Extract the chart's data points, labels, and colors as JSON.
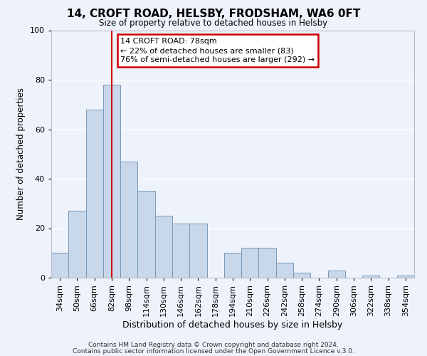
{
  "title": "14, CROFT ROAD, HELSBY, FRODSHAM, WA6 0FT",
  "subtitle": "Size of property relative to detached houses in Helsby",
  "xlabel": "Distribution of detached houses by size in Helsby",
  "ylabel": "Number of detached properties",
  "bar_color": "#c8d8ea",
  "bar_edge_color": "#7799bb",
  "background_color": "#eef2fb",
  "grid_color": "#ffffff",
  "bin_labels": [
    "34sqm",
    "50sqm",
    "66sqm",
    "82sqm",
    "98sqm",
    "114sqm",
    "130sqm",
    "146sqm",
    "162sqm",
    "178sqm",
    "194sqm",
    "210sqm",
    "226sqm",
    "242sqm",
    "258sqm",
    "274sqm",
    "290sqm",
    "306sqm",
    "322sqm",
    "338sqm",
    "354sqm"
  ],
  "bin_values": [
    10,
    27,
    68,
    78,
    47,
    35,
    25,
    22,
    22,
    0,
    10,
    12,
    12,
    6,
    2,
    0,
    3,
    0,
    1,
    0,
    1
  ],
  "ylim": [
    0,
    100
  ],
  "vline_x": 3,
  "vline_color": "#cc0000",
  "annotation_text": "14 CROFT ROAD: 78sqm\n← 22% of detached houses are smaller (83)\n76% of semi-detached houses are larger (292) →",
  "annotation_box_color": "#ffffff",
  "annotation_box_edge_color": "#cc0000",
  "footnote1": "Contains HM Land Registry data © Crown copyright and database right 2024.",
  "footnote2": "Contains public sector information licensed under the Open Government Licence v.3.0."
}
